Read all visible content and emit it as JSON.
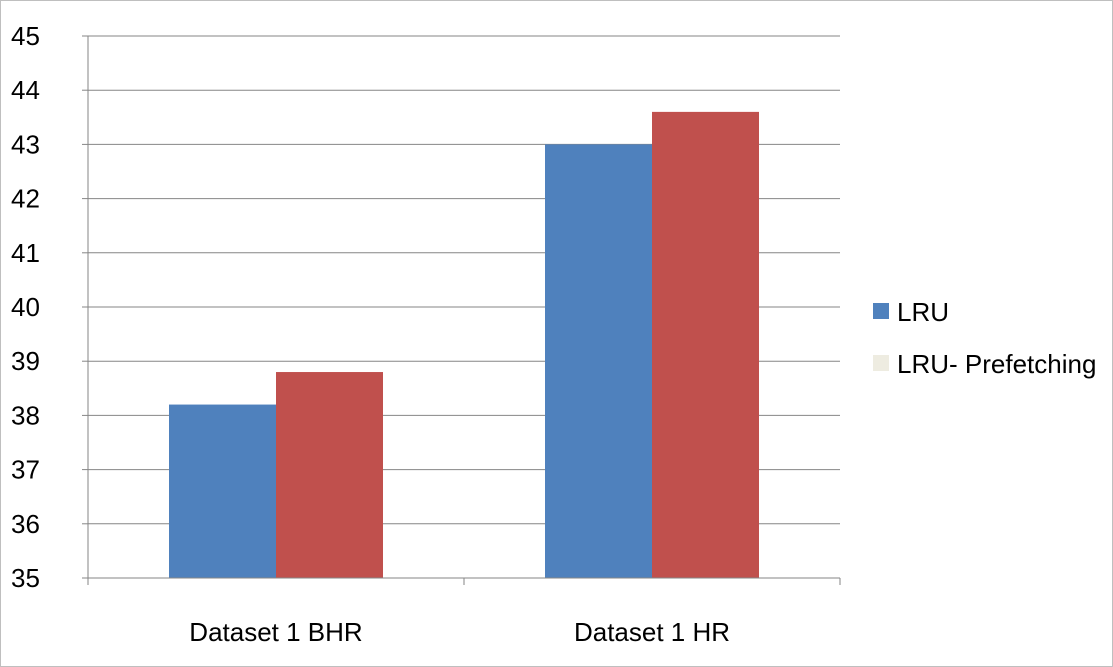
{
  "chart_data": {
    "type": "bar",
    "categories": [
      "Dataset 1 BHR",
      "Dataset 1 HR"
    ],
    "series": [
      {
        "name": "LRU",
        "values": [
          38.2,
          43.0
        ],
        "color": "#4F81BD"
      },
      {
        "name": "LRU- Prefetching",
        "values": [
          38.8,
          43.6
        ],
        "color": "#C0504D"
      }
    ],
    "legend_swatch_colors": [
      "#4F81BD",
      "#EEECE1"
    ],
    "ylim": [
      35,
      45
    ],
    "y_ticks": [
      "35",
      "36",
      "37",
      "38",
      "39",
      "40",
      "41",
      "42",
      "43",
      "44",
      "45"
    ],
    "grid": true,
    "gridline_color": "#868686",
    "legend_position": "right",
    "title": "",
    "xlabel": "",
    "ylabel": ""
  }
}
